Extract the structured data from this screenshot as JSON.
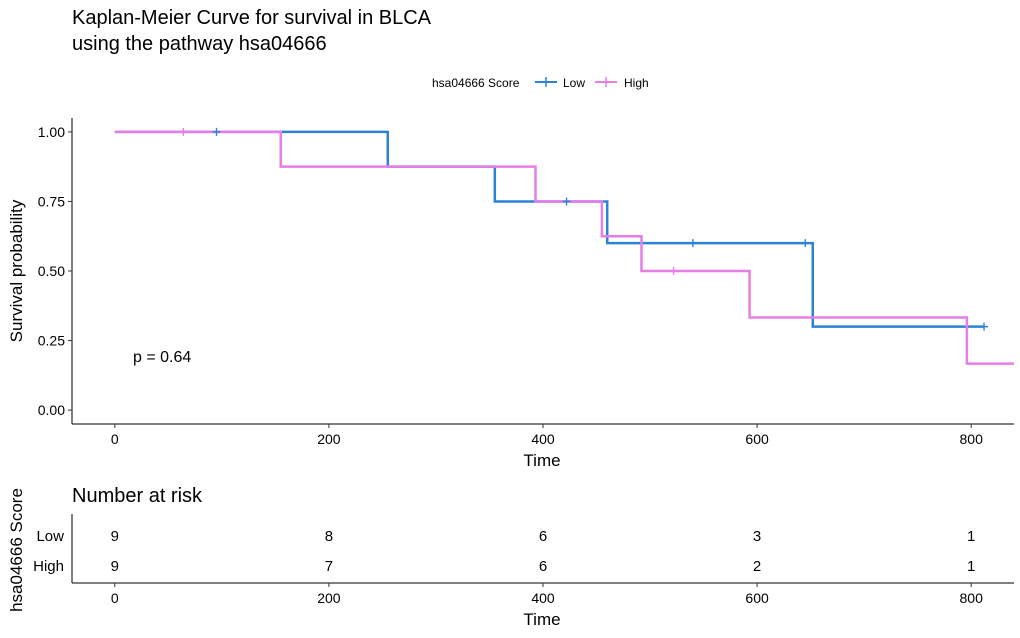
{
  "chart_data": {
    "type": "line",
    "title_lines": [
      "Kaplan-Meier Curve for survival in BLCA",
      "using the pathway hsa04666"
    ],
    "xlabel": "Time",
    "ylabel": "Survival probability",
    "xlim": [
      -40,
      840
    ],
    "ylim": [
      -0.05,
      1.05
    ],
    "x_ticks": [
      "0",
      "200",
      "400",
      "600",
      "800"
    ],
    "y_ticks": [
      "0.00",
      "0.25",
      "0.50",
      "0.75",
      "1.00"
    ],
    "legend": {
      "title": "hsa04666 Score",
      "position": "top",
      "entries": [
        "Low",
        "High"
      ]
    },
    "p_value": "p = 0.64",
    "series": [
      {
        "name": "Low",
        "color": "#2c83d6",
        "steps": [
          [
            0,
            1.0
          ],
          [
            255,
            0.875
          ],
          [
            355,
            0.75
          ],
          [
            460,
            0.6
          ],
          [
            652,
            0.3
          ],
          [
            812,
            0.3
          ]
        ],
        "censor_x": [
          95,
          422,
          540,
          645,
          812
        ],
        "censor_y": [
          1.0,
          0.75,
          0.6,
          0.6,
          0.3
        ]
      },
      {
        "name": "High",
        "color": "#e67ee6",
        "steps": [
          [
            0,
            1.0
          ],
          [
            155,
            0.875
          ],
          [
            393,
            0.75
          ],
          [
            455,
            0.625
          ],
          [
            492,
            0.5
          ],
          [
            593,
            0.333
          ],
          [
            796,
            0.167
          ],
          [
            840,
            0.167
          ]
        ],
        "censor_x": [
          64,
          522
        ],
        "censor_y": [
          1.0,
          0.5
        ]
      }
    ],
    "risk_table": {
      "title": "Number at risk",
      "ylabel": "hsa04666 Score",
      "xlabel": "Time",
      "times": [
        0,
        200,
        400,
        600,
        800
      ],
      "rows": [
        {
          "label": "Low",
          "color": "#2c83d6",
          "values": [
            "9",
            "8",
            "6",
            "3",
            "1"
          ]
        },
        {
          "label": "High",
          "color": "#e67ee6",
          "values": [
            "9",
            "7",
            "6",
            "2",
            "1"
          ]
        }
      ]
    }
  }
}
